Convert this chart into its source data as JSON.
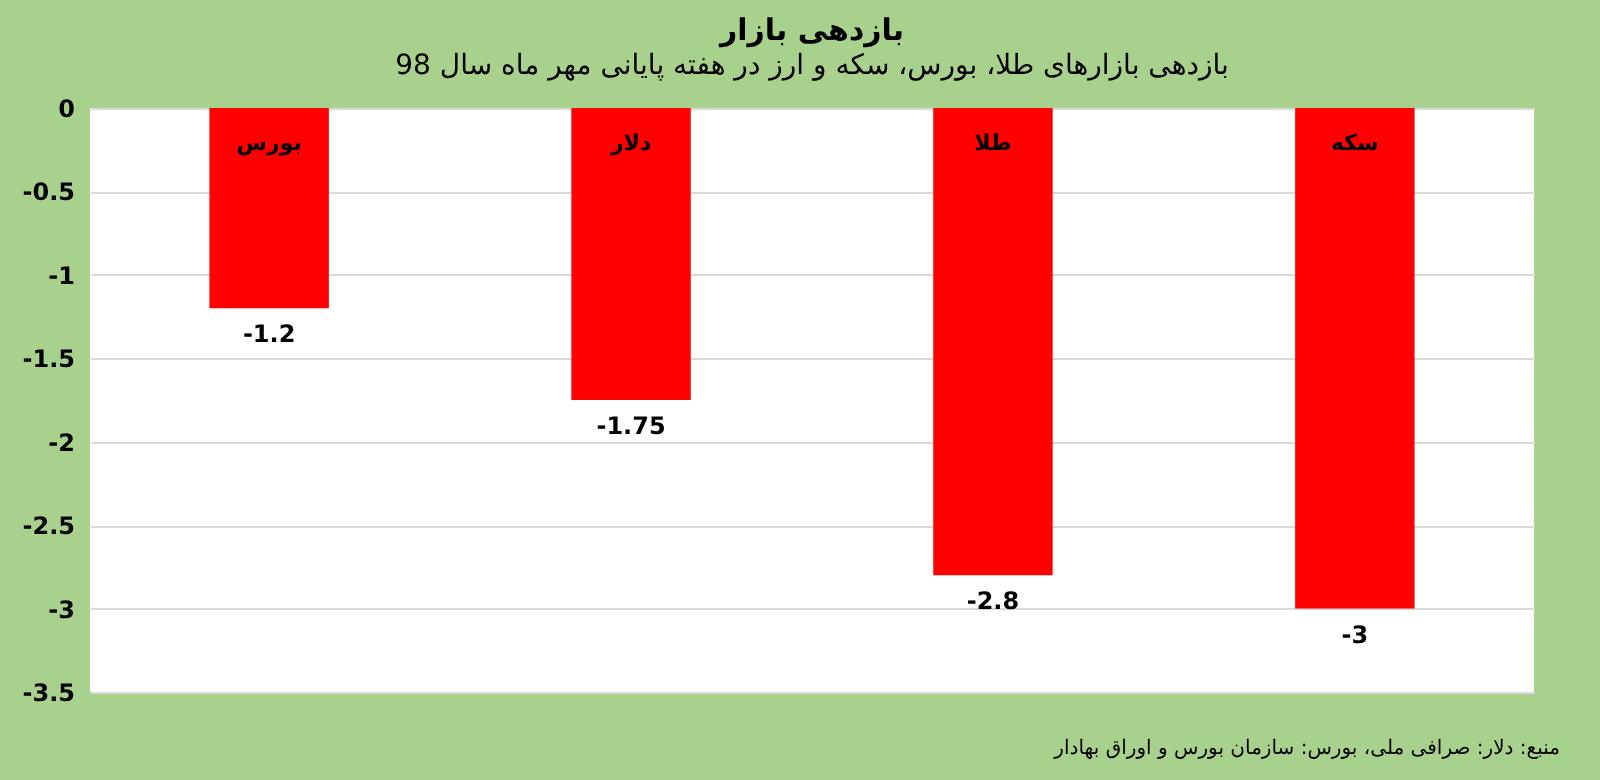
{
  "chart_data": {
    "type": "bar",
    "title": "بازدهی بازار",
    "subtitle": "بازدهی بازارهای طلا، بورس، سکه و ارز در هفته پایانی مهر ماه سال 98",
    "categories": [
      "بورس",
      "دلار",
      "طلا",
      "سکه"
    ],
    "values": [
      -1.2,
      -1.75,
      -2.8,
      -3
    ],
    "color": "#ff0000",
    "ylim": [
      -3.5,
      0
    ],
    "yticks": [
      0,
      -0.5,
      -1,
      -1.5,
      -2,
      -2.5,
      -3,
      -3.5
    ],
    "grid": "y",
    "data_labels": true,
    "annotations": [
      "منبع: دلار: صرافی ملی، بورس: سازمان بورس و اوراق بهادار"
    ]
  }
}
